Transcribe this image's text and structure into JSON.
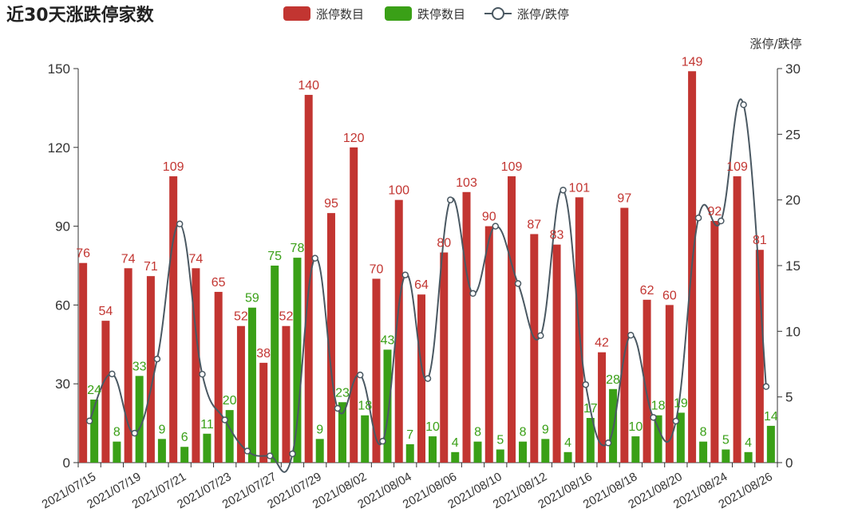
{
  "chart_data": {
    "type": "bar",
    "title": "近30天涨跌停家数",
    "legend": {
      "placement": "top-center",
      "items": [
        {
          "name": "涨停数目",
          "color": "#c23531",
          "kind": "bar"
        },
        {
          "name": "跌停数目",
          "color": "#3aa017",
          "kind": "bar"
        },
        {
          "name": "涨停/跌停",
          "color": "#4a5862",
          "kind": "line"
        }
      ]
    },
    "categories": [
      "2021/07/15",
      "2021/07/16",
      "2021/07/19",
      "2021/07/20",
      "2021/07/21",
      "2021/07/22",
      "2021/07/23",
      "2021/07/26",
      "2021/07/27",
      "2021/07/28",
      "2021/07/29",
      "2021/07/30",
      "2021/08/02",
      "2021/08/03",
      "2021/08/04",
      "2021/08/05",
      "2021/08/06",
      "2021/08/09",
      "2021/08/10",
      "2021/08/11",
      "2021/08/12",
      "2021/08/13",
      "2021/08/16",
      "2021/08/17",
      "2021/08/18",
      "2021/08/19",
      "2021/08/20",
      "2021/08/23",
      "2021/08/24",
      "2021/08/25",
      "2021/08/26"
    ],
    "x_tick_labels": [
      "2021/07/15",
      "2021/07/19",
      "2021/07/21",
      "2021/07/23",
      "2021/07/27",
      "2021/07/29",
      "2021/08/02",
      "2021/08/04",
      "2021/08/06",
      "2021/08/10",
      "2021/08/12",
      "2021/08/16",
      "2021/08/18",
      "2021/08/20",
      "2021/08/24",
      "2021/08/26"
    ],
    "series": [
      {
        "name": "涨停数目",
        "type": "bar",
        "axis": "left",
        "color": "#c23531",
        "values": [
          76,
          54,
          74,
          71,
          109,
          74,
          65,
          52,
          38,
          52,
          140,
          95,
          120,
          70,
          100,
          64,
          80,
          103,
          90,
          109,
          87,
          83,
          101,
          42,
          97,
          62,
          60,
          149,
          92,
          109,
          81
        ]
      },
      {
        "name": "跌停数目",
        "type": "bar",
        "axis": "left",
        "color": "#3aa017",
        "values": [
          24,
          8,
          33,
          9,
          6,
          11,
          20,
          59,
          75,
          78,
          9,
          23,
          18,
          43,
          7,
          10,
          4,
          8,
          5,
          8,
          9,
          4,
          17,
          28,
          10,
          18,
          19,
          8,
          5,
          4,
          14
        ]
      },
      {
        "name": "涨停/跌停",
        "type": "line",
        "axis": "right",
        "color": "#4a5862",
        "values": [
          3.17,
          6.75,
          2.24,
          7.89,
          18.17,
          6.73,
          3.25,
          0.88,
          0.51,
          0.67,
          15.56,
          4.13,
          6.67,
          1.63,
          14.29,
          6.4,
          20.0,
          12.88,
          18.0,
          13.63,
          9.67,
          20.75,
          5.94,
          1.5,
          9.7,
          3.44,
          3.16,
          18.63,
          18.4,
          27.25,
          5.79
        ]
      }
    ],
    "y_left": {
      "min": 0,
      "max": 150,
      "ticks": [
        0,
        30,
        60,
        90,
        120,
        150
      ]
    },
    "y_right": {
      "name": "涨停/跌停",
      "min": 0,
      "max": 30,
      "ticks": [
        0,
        5,
        10,
        15,
        20,
        25,
        30
      ]
    },
    "grid": false
  }
}
